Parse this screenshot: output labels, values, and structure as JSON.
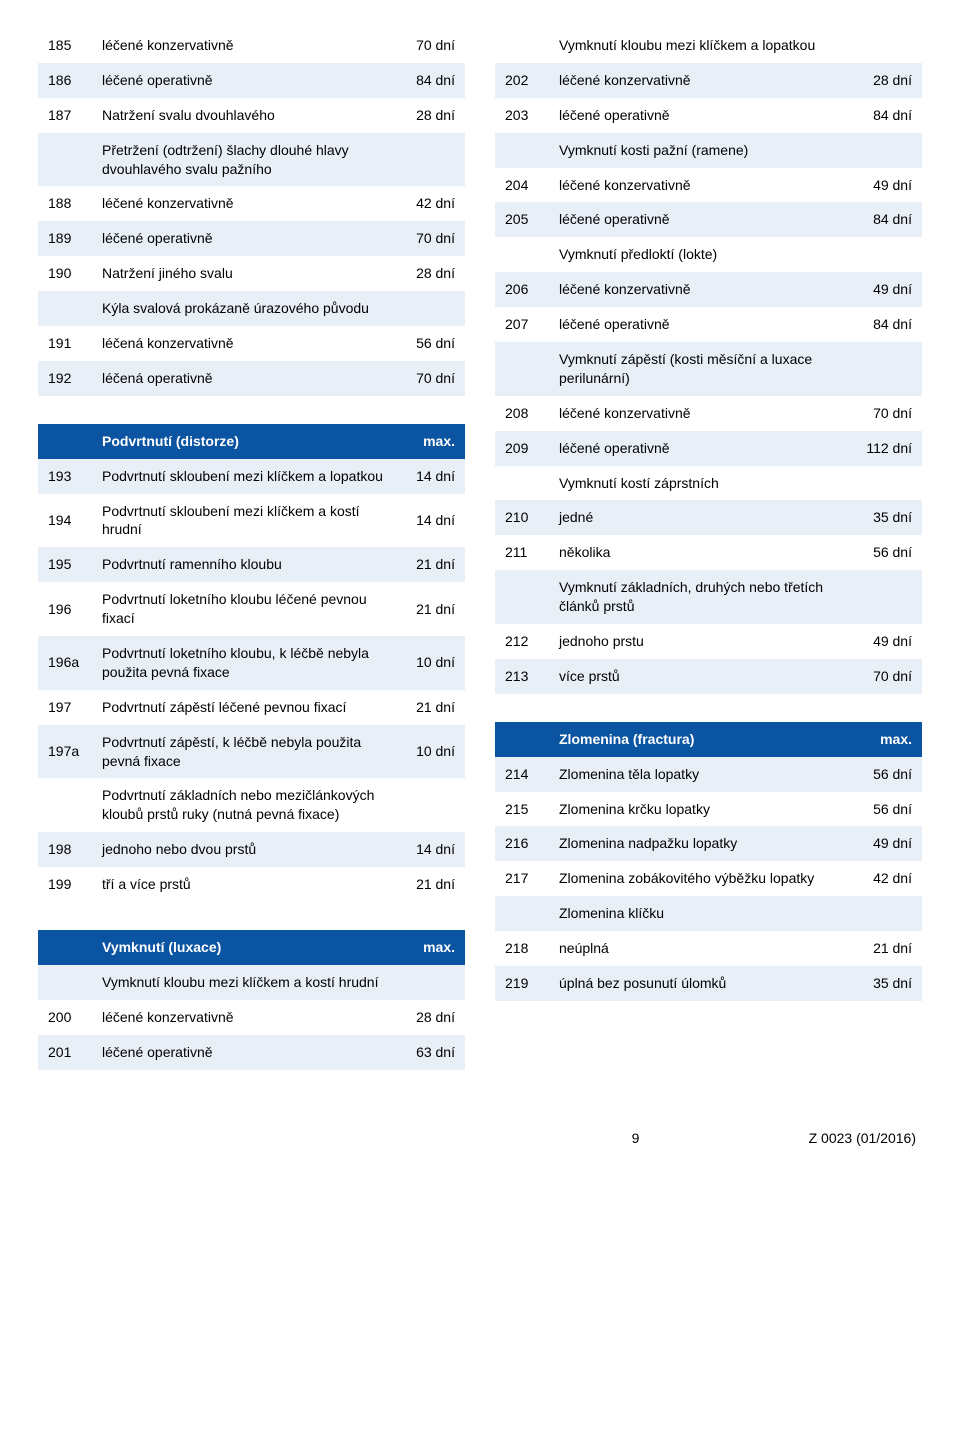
{
  "colors": {
    "header_bg": "#0a54a1",
    "header_fg": "#ffffff",
    "light_bg": "#e9eff7",
    "white_bg": "#ffffff",
    "text": "#000000"
  },
  "left": {
    "block1": [
      {
        "num": "185",
        "label": "léčené konzervativně",
        "val": "70 dní",
        "shade": "white"
      },
      {
        "num": "186",
        "label": "léčené operativně",
        "val": "84 dní",
        "shade": "light"
      },
      {
        "num": "187",
        "label": "Natržení svalu dvouhlavého",
        "val": "28 dní",
        "shade": "white"
      },
      {
        "num": "",
        "label": "Přetržení (odtržení) šlachy dlouhé hlavy dvouhlavého svalu pažního",
        "val": "",
        "shade": "light"
      },
      {
        "num": "188",
        "label": "léčené konzervativně",
        "val": "42 dní",
        "shade": "white"
      },
      {
        "num": "189",
        "label": "léčené operativně",
        "val": "70 dní",
        "shade": "light"
      },
      {
        "num": "190",
        "label": "Natržení jiného svalu",
        "val": "28 dní",
        "shade": "white"
      },
      {
        "num": "",
        "label": "Kýla svalová prokázaně úrazového původu",
        "val": "",
        "shade": "light"
      },
      {
        "num": "191",
        "label": "léčená konzervativně",
        "val": "56 dní",
        "shade": "white"
      },
      {
        "num": "192",
        "label": "léčená operativně",
        "val": "70 dní",
        "shade": "light"
      }
    ],
    "block2_header": {
      "label": "Podvrtnutí (distorze)",
      "val": "max."
    },
    "block2": [
      {
        "num": "193",
        "label": "Podvrtnutí skloubení mezi klíčkem a lopatkou",
        "val": "14 dní",
        "shade": "light"
      },
      {
        "num": "194",
        "label": "Podvrtnutí skloubení mezi klíčkem a kostí hrudní",
        "val": "14 dní",
        "shade": "white"
      },
      {
        "num": "195",
        "label": "Podvrtnutí ramenního kloubu",
        "val": "21 dní",
        "shade": "light"
      },
      {
        "num": "196",
        "label": "Podvrtnutí loketního kloubu léčené pevnou fixací",
        "val": "21 dní",
        "shade": "white"
      },
      {
        "num": "196a",
        "label": "Podvrtnutí loketního kloubu, k léčbě nebyla použita pevná fixace",
        "val": "10 dní",
        "shade": "light"
      },
      {
        "num": "197",
        "label": "Podvrtnutí zápěstí léčené pevnou fixací",
        "val": "21 dní",
        "shade": "white"
      },
      {
        "num": "197a",
        "label": "Podvrtnutí zápěstí, k léčbě nebyla použita pevná fixace",
        "val": "10 dní",
        "shade": "light"
      },
      {
        "num": "",
        "label": "Podvrtnutí základních nebo mezičlánkových kloubů prstů ruky (nutná pevná fixace)",
        "val": "",
        "shade": "white"
      },
      {
        "num": "198",
        "label": "jednoho nebo dvou prstů",
        "val": "14 dní",
        "shade": "light"
      },
      {
        "num": "199",
        "label": "tří a více prstů",
        "val": "21 dní",
        "shade": "white"
      }
    ],
    "block3_header": {
      "label": "Vymknutí (luxace)",
      "val": "max."
    },
    "block3": [
      {
        "num": "",
        "label": "Vymknutí kloubu mezi klíčkem a kostí hrudní",
        "val": "",
        "shade": "light"
      },
      {
        "num": "200",
        "label": "léčené konzervativně",
        "val": "28 dní",
        "shade": "white"
      },
      {
        "num": "201",
        "label": "léčené operativně",
        "val": "63 dní",
        "shade": "light"
      }
    ]
  },
  "right": {
    "block1": [
      {
        "num": "",
        "label": "Vymknutí kloubu mezi klíčkem a lopatkou",
        "val": "",
        "shade": "white"
      },
      {
        "num": "202",
        "label": "léčené konzervativně",
        "val": "28 dní",
        "shade": "light"
      },
      {
        "num": "203",
        "label": "léčené operativně",
        "val": "84 dní",
        "shade": "white"
      },
      {
        "num": "",
        "label": "Vymknutí kosti pažní (ramene)",
        "val": "",
        "shade": "light"
      },
      {
        "num": "204",
        "label": "léčené konzervativně",
        "val": "49 dní",
        "shade": "white"
      },
      {
        "num": "205",
        "label": "léčené operativně",
        "val": "84 dní",
        "shade": "light"
      },
      {
        "num": "",
        "label": "Vymknutí předloktí (lokte)",
        "val": "",
        "shade": "white"
      },
      {
        "num": "206",
        "label": "léčené konzervativně",
        "val": "49 dní",
        "shade": "light"
      },
      {
        "num": "207",
        "label": "léčené operativně",
        "val": "84 dní",
        "shade": "white"
      },
      {
        "num": "",
        "label": "Vymknutí zápěstí (kosti měsíční a luxace perilunární)",
        "val": "",
        "shade": "light"
      },
      {
        "num": "208",
        "label": "léčené konzervativně",
        "val": "70 dní",
        "shade": "white"
      },
      {
        "num": "209",
        "label": "léčené operativně",
        "val": "112 dní",
        "shade": "light"
      },
      {
        "num": "",
        "label": "Vymknutí kostí záprstních",
        "val": "",
        "shade": "white"
      },
      {
        "num": "210",
        "label": "jedné",
        "val": "35 dní",
        "shade": "light"
      },
      {
        "num": "211",
        "label": "několika",
        "val": "56 dní",
        "shade": "white"
      },
      {
        "num": "",
        "label": "Vymknutí základních, druhých nebo třetích článků prstů",
        "val": "",
        "shade": "light"
      },
      {
        "num": "212",
        "label": "jednoho prstu",
        "val": "49 dní",
        "shade": "white"
      },
      {
        "num": "213",
        "label": "více prstů",
        "val": "70 dní",
        "shade": "light"
      }
    ],
    "block2_header": {
      "label": "Zlomenina (fractura)",
      "val": "max."
    },
    "block2": [
      {
        "num": "214",
        "label": "Zlomenina těla lopatky",
        "val": "56 dní",
        "shade": "light"
      },
      {
        "num": "215",
        "label": "Zlomenina krčku lopatky",
        "val": "56 dní",
        "shade": "white"
      },
      {
        "num": "216",
        "label": "Zlomenina nadpažku lopatky",
        "val": "49 dní",
        "shade": "light"
      },
      {
        "num": "217",
        "label": "Zlomenina zobákovitého výběžku lopatky",
        "val": "42 dní",
        "shade": "white"
      },
      {
        "num": "",
        "label": "Zlomenina klíčku",
        "val": "",
        "shade": "light"
      },
      {
        "num": "218",
        "label": "neúplná",
        "val": "21 dní",
        "shade": "white"
      },
      {
        "num": "219",
        "label": "úplná bez posunutí úlomků",
        "val": "35 dní",
        "shade": "light"
      }
    ]
  },
  "footer": {
    "page": "9",
    "doc": "Z 0023 (01/2016)"
  }
}
